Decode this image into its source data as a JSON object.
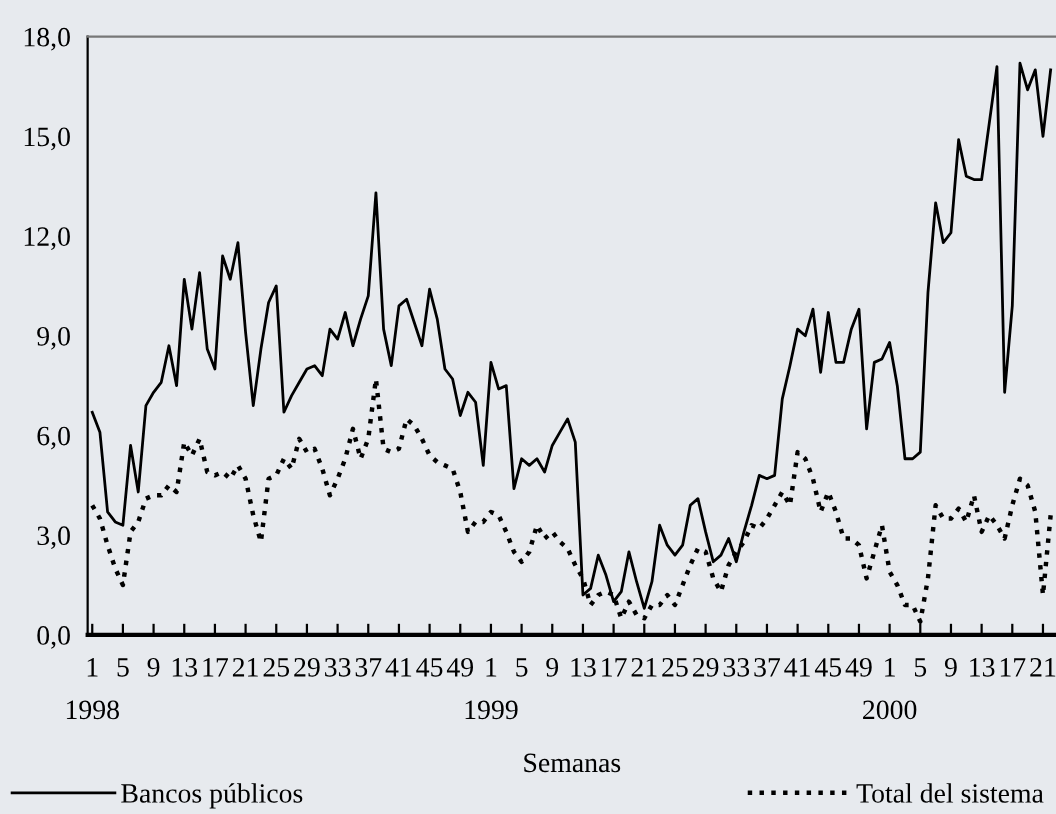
{
  "chart_data": {
    "type": "line",
    "categories": [
      "1\n1998",
      null,
      null,
      null,
      "5",
      null,
      null,
      null,
      "9",
      null,
      null,
      null,
      "13",
      null,
      null,
      null,
      "17",
      null,
      null,
      null,
      "21",
      null,
      null,
      null,
      "25",
      null,
      null,
      null,
      "29",
      null,
      null,
      null,
      "33",
      null,
      null,
      null,
      "37",
      null,
      null,
      null,
      "41",
      null,
      null,
      null,
      "45",
      null,
      null,
      null,
      "49",
      null,
      null,
      null,
      "1\n1999",
      null,
      null,
      null,
      "5",
      null,
      null,
      null,
      "9",
      null,
      null,
      null,
      "13",
      null,
      null,
      null,
      "17",
      null,
      null,
      null,
      "21",
      null,
      null,
      null,
      "25",
      null,
      null,
      null,
      "29",
      null,
      null,
      null,
      "33",
      null,
      null,
      null,
      "37",
      null,
      null,
      null,
      "41",
      null,
      null,
      null,
      "45",
      null,
      null,
      null,
      "49",
      null,
      null,
      null,
      "1\n2000",
      null,
      null,
      null,
      "5",
      null,
      null,
      null,
      "9",
      null,
      null,
      null,
      "13",
      null,
      null,
      null,
      "17",
      null,
      null,
      null,
      "21",
      null
    ],
    "series": [
      {
        "name": "Bancos públicos",
        "color": "#000000",
        "line_style": "solid",
        "values": [
          6.7,
          6.1,
          3.7,
          3.4,
          3.3,
          5.7,
          4.3,
          6.9,
          7.3,
          7.6,
          8.7,
          7.5,
          10.7,
          9.2,
          10.9,
          8.6,
          8.0,
          11.4,
          10.7,
          11.8,
          9.1,
          6.9,
          8.6,
          10.0,
          10.5,
          6.7,
          7.2,
          7.6,
          8.0,
          8.1,
          7.8,
          9.2,
          8.9,
          9.7,
          8.7,
          9.5,
          10.2,
          13.3,
          9.2,
          8.1,
          9.9,
          10.1,
          9.4,
          8.7,
          10.4,
          9.5,
          8.0,
          7.7,
          6.6,
          7.3,
          7.0,
          5.1,
          8.2,
          7.4,
          7.5,
          4.4,
          5.3,
          5.1,
          5.3,
          4.9,
          5.7,
          6.1,
          6.5,
          5.8,
          1.2,
          1.4,
          2.4,
          1.8,
          1.0,
          1.3,
          2.5,
          1.6,
          0.8,
          1.6,
          3.3,
          2.7,
          2.4,
          2.7,
          3.9,
          4.1,
          3.1,
          2.2,
          2.4,
          2.9,
          2.2,
          3.1,
          3.9,
          4.8,
          4.7,
          4.8,
          7.1,
          8.1,
          9.2,
          9.0,
          9.8,
          7.9,
          9.7,
          8.2,
          8.2,
          9.2,
          9.8,
          6.2,
          8.2,
          8.3,
          8.8,
          7.5,
          5.3,
          5.3,
          5.5,
          10.3,
          13.0,
          11.8,
          12.1,
          14.9,
          13.8,
          13.7,
          13.7,
          15.4,
          17.1,
          7.3,
          9.9,
          17.2,
          16.4,
          17.0,
          15.0,
          17.0
        ]
      },
      {
        "name": "Total del sistema",
        "color": "#000000",
        "line_style": "dotted",
        "values": [
          3.9,
          3.5,
          2.7,
          2.0,
          1.5,
          3.1,
          3.4,
          4.1,
          4.2,
          4.2,
          4.5,
          4.3,
          5.8,
          5.4,
          5.9,
          4.9,
          4.8,
          4.9,
          4.7,
          5.1,
          4.7,
          3.6,
          2.8,
          4.7,
          4.8,
          5.3,
          5.0,
          5.9,
          5.5,
          5.6,
          5.0,
          4.2,
          4.7,
          5.3,
          6.2,
          5.3,
          5.9,
          7.7,
          5.6,
          5.5,
          5.6,
          6.5,
          6.3,
          5.9,
          5.4,
          5.2,
          5.1,
          5.0,
          4.3,
          3.1,
          3.4,
          3.4,
          3.7,
          3.6,
          3.1,
          2.5,
          2.2,
          2.5,
          3.3,
          2.9,
          3.1,
          2.8,
          2.6,
          2.1,
          1.7,
          0.9,
          1.2,
          1.3,
          1.2,
          0.5,
          1.0,
          0.6,
          0.5,
          0.9,
          0.9,
          1.2,
          0.9,
          1.5,
          2.1,
          2.6,
          2.5,
          1.7,
          1.3,
          2.1,
          2.5,
          2.8,
          3.3,
          3.2,
          3.5,
          3.9,
          4.3,
          3.9,
          5.5,
          5.3,
          4.7,
          3.7,
          4.3,
          3.7,
          2.9,
          2.9,
          2.7,
          1.7,
          2.5,
          3.3,
          1.9,
          1.5,
          0.9,
          0.9,
          0.4,
          1.7,
          3.9,
          3.5,
          3.5,
          3.8,
          3.4,
          4.2,
          3.1,
          3.6,
          3.3,
          2.9,
          3.9,
          4.7,
          4.5,
          3.7,
          1.2,
          3.6
        ]
      }
    ],
    "ylim": [
      0,
      18
    ],
    "yticks": [
      {
        "value": 0,
        "label": "0,0"
      },
      {
        "value": 3,
        "label": "3,0"
      },
      {
        "value": 6,
        "label": "6,0"
      },
      {
        "value": 9,
        "label": "9,0"
      },
      {
        "value": 12,
        "label": "12,0"
      },
      {
        "value": 15,
        "label": "15,0"
      },
      {
        "value": 18,
        "label": "18,0"
      }
    ],
    "xlabel": "Semanas",
    "legend": "bottom",
    "grid": false,
    "marker": "none"
  }
}
